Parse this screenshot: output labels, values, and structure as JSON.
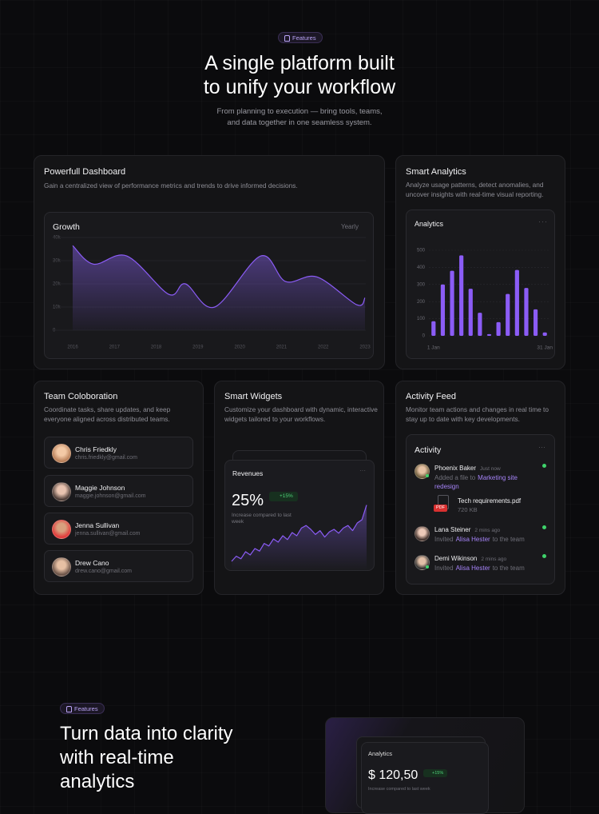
{
  "header": {
    "badge": "Features",
    "title_lines": [
      "A single platform built",
      "to unify your workflow"
    ],
    "subtitle_lines": [
      "From planning to execution — bring tools, teams,",
      "and data together in one seamless system."
    ]
  },
  "cards": {
    "dashboard": {
      "title": "Powerfull Dashboard",
      "description": "Gain a centralized view of performance metrics and trends to drive informed decisions.",
      "chart": {
        "type": "area",
        "title": "Growth",
        "period": "Yearly",
        "x": [
          2016,
          2016.5,
          2017.3,
          2018.3,
          2018.7,
          2019.4,
          2020.5,
          2021.1,
          2021.85,
          2022.8,
          2023
        ],
        "values": [
          36500,
          28500,
          32000,
          15500,
          20000,
          10000,
          32000,
          21000,
          23000,
          11000,
          14000
        ],
        "color": "#8b5cf6",
        "xlim": [
          2016,
          2023
        ],
        "xticks": [
          2016,
          2017,
          2018,
          2019,
          2020,
          2021,
          2022,
          2023
        ],
        "ylim": [
          0,
          40000
        ],
        "yticks": [
          {
            "value": 0,
            "label": "0"
          },
          {
            "value": 10000,
            "label": "10k"
          },
          {
            "value": 20000,
            "label": "20k"
          },
          {
            "value": 30000,
            "label": "30k"
          },
          {
            "value": 40000,
            "label": "40k"
          }
        ],
        "grid": true
      }
    },
    "analytics": {
      "title": "Smart Analytics",
      "description": "Analyze usage patterns, detect anomalies, and uncover insights with real-time visual reporting.",
      "chart": {
        "type": "bar",
        "title": "Analytics",
        "categories": [
          "1 Jan",
          null,
          null,
          null,
          null,
          null,
          null,
          null,
          null,
          null,
          null,
          null,
          "31 Jan"
        ],
        "values": [
          85,
          300,
          380,
          470,
          275,
          135,
          10,
          80,
          245,
          385,
          280,
          155,
          20
        ],
        "color": "#8b5cf6",
        "ylim": [
          0,
          500
        ],
        "yticks": [
          0,
          100,
          200,
          300,
          400,
          500
        ],
        "grid": true
      }
    },
    "team": {
      "title": "Team Coloboration",
      "description": "Coordinate tasks, share updates, and keep everyone aligned across distributed teams.",
      "members": [
        {
          "name": "Chris Friedkly",
          "email": "chris.friedkly@gmail.com"
        },
        {
          "name": "Maggie Johnson",
          "email": "maggie.johnson@gmail.com"
        },
        {
          "name": "Jenna Sullivan",
          "email": "jenna.sullivan@gmail.com"
        },
        {
          "name": "Drew Cano",
          "email": "drew.cano@gmail.com"
        }
      ]
    },
    "widgets": {
      "title": "Smart Widgets",
      "description": "Customize your dashboard with dynamic, interactive widgets tailored to your workflows.",
      "chart": {
        "type": "line",
        "title": "Revenues",
        "headline": "25%",
        "change": "+15%",
        "note": "Increase compared to last week",
        "values": [
          10,
          18,
          14,
          25,
          20,
          30,
          26,
          38,
          34,
          45,
          40,
          50,
          44,
          55,
          50,
          62,
          66,
          60,
          52,
          58,
          48,
          56,
          60,
          54,
          62,
          66,
          58,
          70,
          75,
          98
        ],
        "color": "#8b5cf6",
        "ylim": [
          0,
          100
        ]
      }
    },
    "activity": {
      "title": "Activity Feed",
      "description": "Monitor team actions and changes in real time to stay up to date with key developments.",
      "panel_title": "Activity",
      "entries": [
        {
          "name": "Phoenix Baker",
          "time": "Just now",
          "action": "Added a file to",
          "target": "Marketing site redesign",
          "file": {
            "badge": "PDF",
            "name": "Tech requirements.pdf",
            "size": "720 KB"
          }
        },
        {
          "name": "Lana Steiner",
          "time": "2 mins ago",
          "action": "Invited",
          "target": "Alisa Hester",
          "rest": "to the team"
        },
        {
          "name": "Demi Wikinson",
          "time": "2 mins ago",
          "action": "Invited",
          "target": "Alisa Hester",
          "rest": "to the team"
        }
      ]
    }
  },
  "section2": {
    "badge": "Features",
    "title_lines": [
      "Turn data into clarity",
      "with real-time",
      "analytics"
    ],
    "card": {
      "title": "Analytics",
      "amount": "$ 120,50",
      "change": "+15%",
      "note": "Increase compared to last week"
    }
  }
}
